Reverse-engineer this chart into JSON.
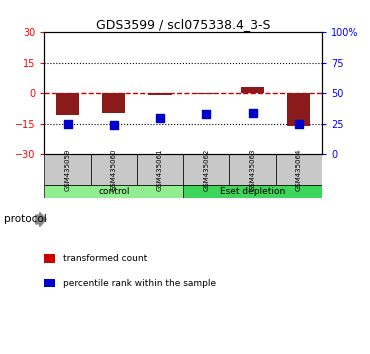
{
  "title": "GDS3599 / scl075338.4_3-S",
  "samples": [
    "GSM435059",
    "GSM435060",
    "GSM435061",
    "GSM435062",
    "GSM435063",
    "GSM435064"
  ],
  "transformed_counts": [
    -10.5,
    -9.5,
    -1.0,
    -0.5,
    3.0,
    -16.0
  ],
  "percentile_ranks_pct": [
    25,
    24,
    30,
    33,
    34,
    25
  ],
  "ylim_left": [
    -30,
    30
  ],
  "ylim_right": [
    0,
    100
  ],
  "yticks_left": [
    -30,
    -15,
    0,
    15,
    30
  ],
  "yticks_right": [
    0,
    25,
    50,
    75,
    100
  ],
  "groups": [
    {
      "label": "control",
      "indices": [
        0,
        1,
        2
      ],
      "color": "#90EE90"
    },
    {
      "label": "Eset depletion",
      "indices": [
        3,
        4,
        5
      ],
      "color": "#3DD65A"
    }
  ],
  "bar_color": "#8B1A1A",
  "dot_color": "#0000CC",
  "hline_color": "#CC0000",
  "dotted_color": "#000000",
  "bg_color": "#FFFFFF",
  "sample_bg_color": "#C8C8C8",
  "legend_items": [
    {
      "label": "transformed count",
      "color": "#CC0000"
    },
    {
      "label": "percentile rank within the sample",
      "color": "#0000CC"
    }
  ],
  "protocol_label": "protocol",
  "bar_width": 0.5,
  "dot_size": 35
}
